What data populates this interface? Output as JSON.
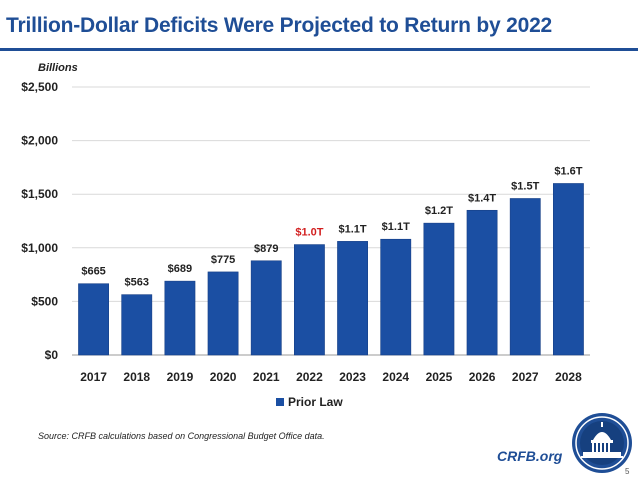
{
  "slide": {
    "title": "Trillion-Dollar Deficits Were Projected to Return by 2022",
    "units_label": "Billions",
    "source_note": "Source: CRFB calculations based on Congressional Budget Office data.",
    "brand": "CRFB.org",
    "page_number": "5",
    "colors": {
      "title": "#1f4e96",
      "bar": "#1b4fa3",
      "highlight_label": "#d21f1f"
    },
    "logo_icon": "capitol-dome-seal-icon"
  },
  "chart_data": {
    "type": "bar",
    "title": "",
    "xlabel": "",
    "ylabel": "",
    "ylim": [
      0,
      2500
    ],
    "yticks": [
      0,
      500,
      1000,
      1500,
      2000,
      2500
    ],
    "ytick_labels": [
      "$0",
      "$500",
      "$1,000",
      "$1,500",
      "$2,000",
      "$2,500"
    ],
    "grid": true,
    "legend_position": "bottom-center",
    "categories": [
      "2017",
      "2018",
      "2019",
      "2020",
      "2021",
      "2022",
      "2023",
      "2024",
      "2025",
      "2026",
      "2027",
      "2028"
    ],
    "series": [
      {
        "name": "Prior Law",
        "color": "#1b4fa3",
        "values": [
          665,
          563,
          689,
          775,
          879,
          1030,
          1060,
          1080,
          1230,
          1350,
          1460,
          1600
        ],
        "data_labels": [
          "$665",
          "$563",
          "$689",
          "$775",
          "$879",
          "$1.0T",
          "$1.1T",
          "$1.1T",
          "$1.2T",
          "$1.4T",
          "$1.5T",
          "$1.6T"
        ],
        "highlight_index": 5
      }
    ]
  }
}
